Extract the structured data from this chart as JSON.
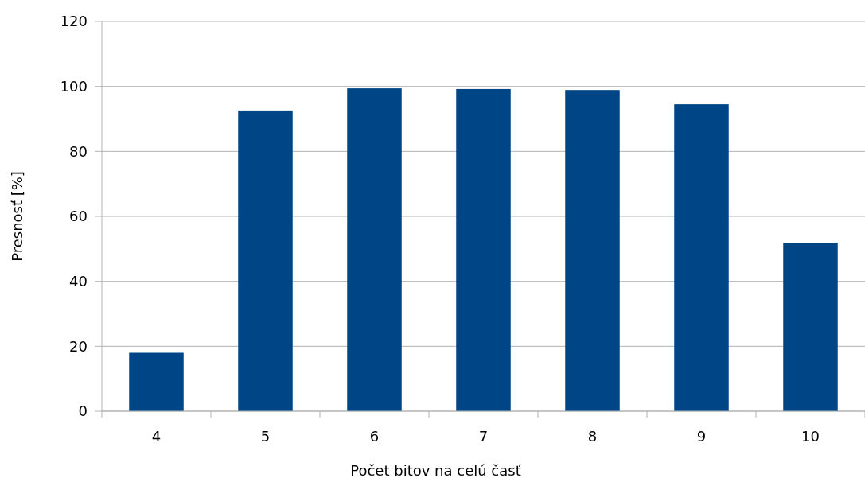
{
  "chart_data": {
    "type": "bar",
    "xlabel": "Počet bitov na celú časť",
    "ylabel": "Presnosť [%]",
    "categories": [
      "4",
      "5",
      "6",
      "7",
      "8",
      "9",
      "10"
    ],
    "values": [
      18,
      92.6,
      99.4,
      99.2,
      98.9,
      94.5,
      51.9
    ],
    "color": "#004586",
    "ylim": [
      0,
      120
    ],
    "yticks": [
      0,
      20,
      40,
      60,
      80,
      100,
      120
    ],
    "grid": "y"
  }
}
